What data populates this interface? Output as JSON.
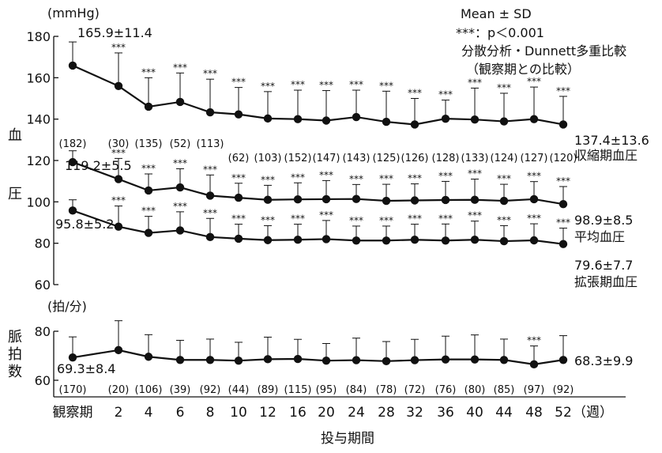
{
  "chart_data": [
    {
      "type": "line",
      "panel": "blood-pressure",
      "unit_label": "(mmHg)",
      "y_axis_title": [
        "血",
        "圧"
      ],
      "ylim": [
        60,
        180
      ],
      "y_ticks": [
        60,
        80,
        100,
        120,
        140,
        160,
        180
      ],
      "legend_notes": [
        "Mean ± SD",
        "***：p＜0.001",
        "分散分析・Dunnett多重比較",
        "（観察期との比較）"
      ],
      "significance_marker": "***",
      "categories": [
        "観察期",
        "2",
        "4",
        "6",
        "8",
        "10",
        "12",
        "16",
        "20",
        "24",
        "28",
        "32",
        "36",
        "40",
        "44",
        "48",
        "52"
      ],
      "series": [
        {
          "name": "収縮期血圧",
          "values": [
            165.9,
            156,
            146,
            148.3,
            143.3,
            142.3,
            140.3,
            140,
            139.3,
            141,
            138.7,
            137.4,
            140.2,
            139.8,
            138.9,
            140,
            137.4
          ],
          "sd": [
            11.4,
            16,
            14,
            14,
            16,
            13,
            13,
            14,
            14.5,
            13,
            14.8,
            12.6,
            9,
            15.2,
            13.6,
            15.5,
            13.6
          ],
          "significant": [
            false,
            true,
            true,
            true,
            true,
            true,
            true,
            true,
            true,
            true,
            true,
            true,
            true,
            true,
            true,
            true,
            true
          ],
          "start_label": "165.9±11.4",
          "end_value_label": "137.4±13.6",
          "end_name_label": "収縮期血圧",
          "n": [
            "(182)",
            "(30)",
            "(135)",
            "(52)",
            "(113)",
            "(62)",
            "(103)",
            "(152)",
            "(147)",
            "(143)",
            "(125)",
            "(126)",
            "(128)",
            "(133)",
            "(124)",
            "(127)",
            "(120)"
          ]
        },
        {
          "name": "平均血圧",
          "values": [
            119.2,
            111,
            105.5,
            107,
            103,
            102,
            101,
            101.2,
            101.3,
            101.4,
            100.5,
            100.7,
            100.9,
            101,
            100.5,
            101.3,
            98.9
          ],
          "sd": [
            5.5,
            10,
            8,
            9,
            10,
            7,
            7,
            8,
            9,
            7,
            8,
            8,
            9,
            10,
            8,
            8.5,
            8.5
          ],
          "significant": [
            false,
            true,
            true,
            true,
            true,
            true,
            true,
            true,
            true,
            true,
            true,
            true,
            true,
            true,
            true,
            true,
            true
          ],
          "start_label": "119.2±5.5",
          "end_value_label": "98.9±8.5",
          "end_name_label": "平均血圧"
        },
        {
          "name": "拡張期血圧",
          "values": [
            95.8,
            88,
            85,
            86.2,
            83,
            82.2,
            81.5,
            81.7,
            82,
            81.3,
            81.3,
            81.7,
            81.3,
            81.7,
            81,
            81.4,
            79.6
          ],
          "sd": [
            5.2,
            10,
            8,
            9,
            9,
            7,
            7,
            7.5,
            9,
            7,
            7,
            7.5,
            8,
            9,
            7.5,
            8,
            7.7
          ],
          "significant": [
            false,
            true,
            true,
            true,
            true,
            true,
            true,
            true,
            true,
            true,
            true,
            true,
            true,
            true,
            true,
            true,
            true
          ],
          "start_label": "95.8±5.2",
          "end_value_label": "79.6±7.7",
          "end_name_label": "拡張期血圧"
        }
      ]
    },
    {
      "type": "line",
      "panel": "pulse-rate",
      "unit_label": "(拍/分)",
      "y_axis_title": [
        "脈",
        "拍",
        "数"
      ],
      "ylim": [
        60,
        80
      ],
      "y_ticks": [
        60,
        80
      ],
      "xlabel": "投与期間",
      "unit_suffix": "（週）",
      "significance_marker": "***",
      "categories": [
        "観察期",
        "2",
        "4",
        "6",
        "8",
        "10",
        "12",
        "16",
        "20",
        "24",
        "28",
        "32",
        "36",
        "40",
        "44",
        "48",
        "52"
      ],
      "series": [
        {
          "name": "脈拍数",
          "values": [
            69.3,
            72.3,
            69.6,
            68.3,
            68.3,
            68,
            68.6,
            68.7,
            68,
            68.2,
            67.8,
            68.2,
            68.5,
            68.5,
            68.3,
            66.5,
            68.3
          ],
          "sd": [
            8.4,
            12,
            9,
            8,
            8.5,
            7.5,
            9,
            8,
            7,
            9,
            8,
            8.5,
            9.5,
            10,
            8.5,
            7.5,
            9.9
          ],
          "significant": [
            false,
            false,
            false,
            false,
            false,
            false,
            false,
            false,
            false,
            false,
            false,
            false,
            false,
            false,
            false,
            true,
            false
          ],
          "start_label": "69.3±8.4",
          "end_value_label": "68.3±9.9",
          "n": [
            "(170)",
            "(20)",
            "(106)",
            "(39)",
            "(92)",
            "(44)",
            "(89)",
            "(115)",
            "(95)",
            "(84)",
            "(78)",
            "(72)",
            "(76)",
            "(80)",
            "(85)",
            "(97)",
            "(92)"
          ]
        }
      ]
    }
  ]
}
